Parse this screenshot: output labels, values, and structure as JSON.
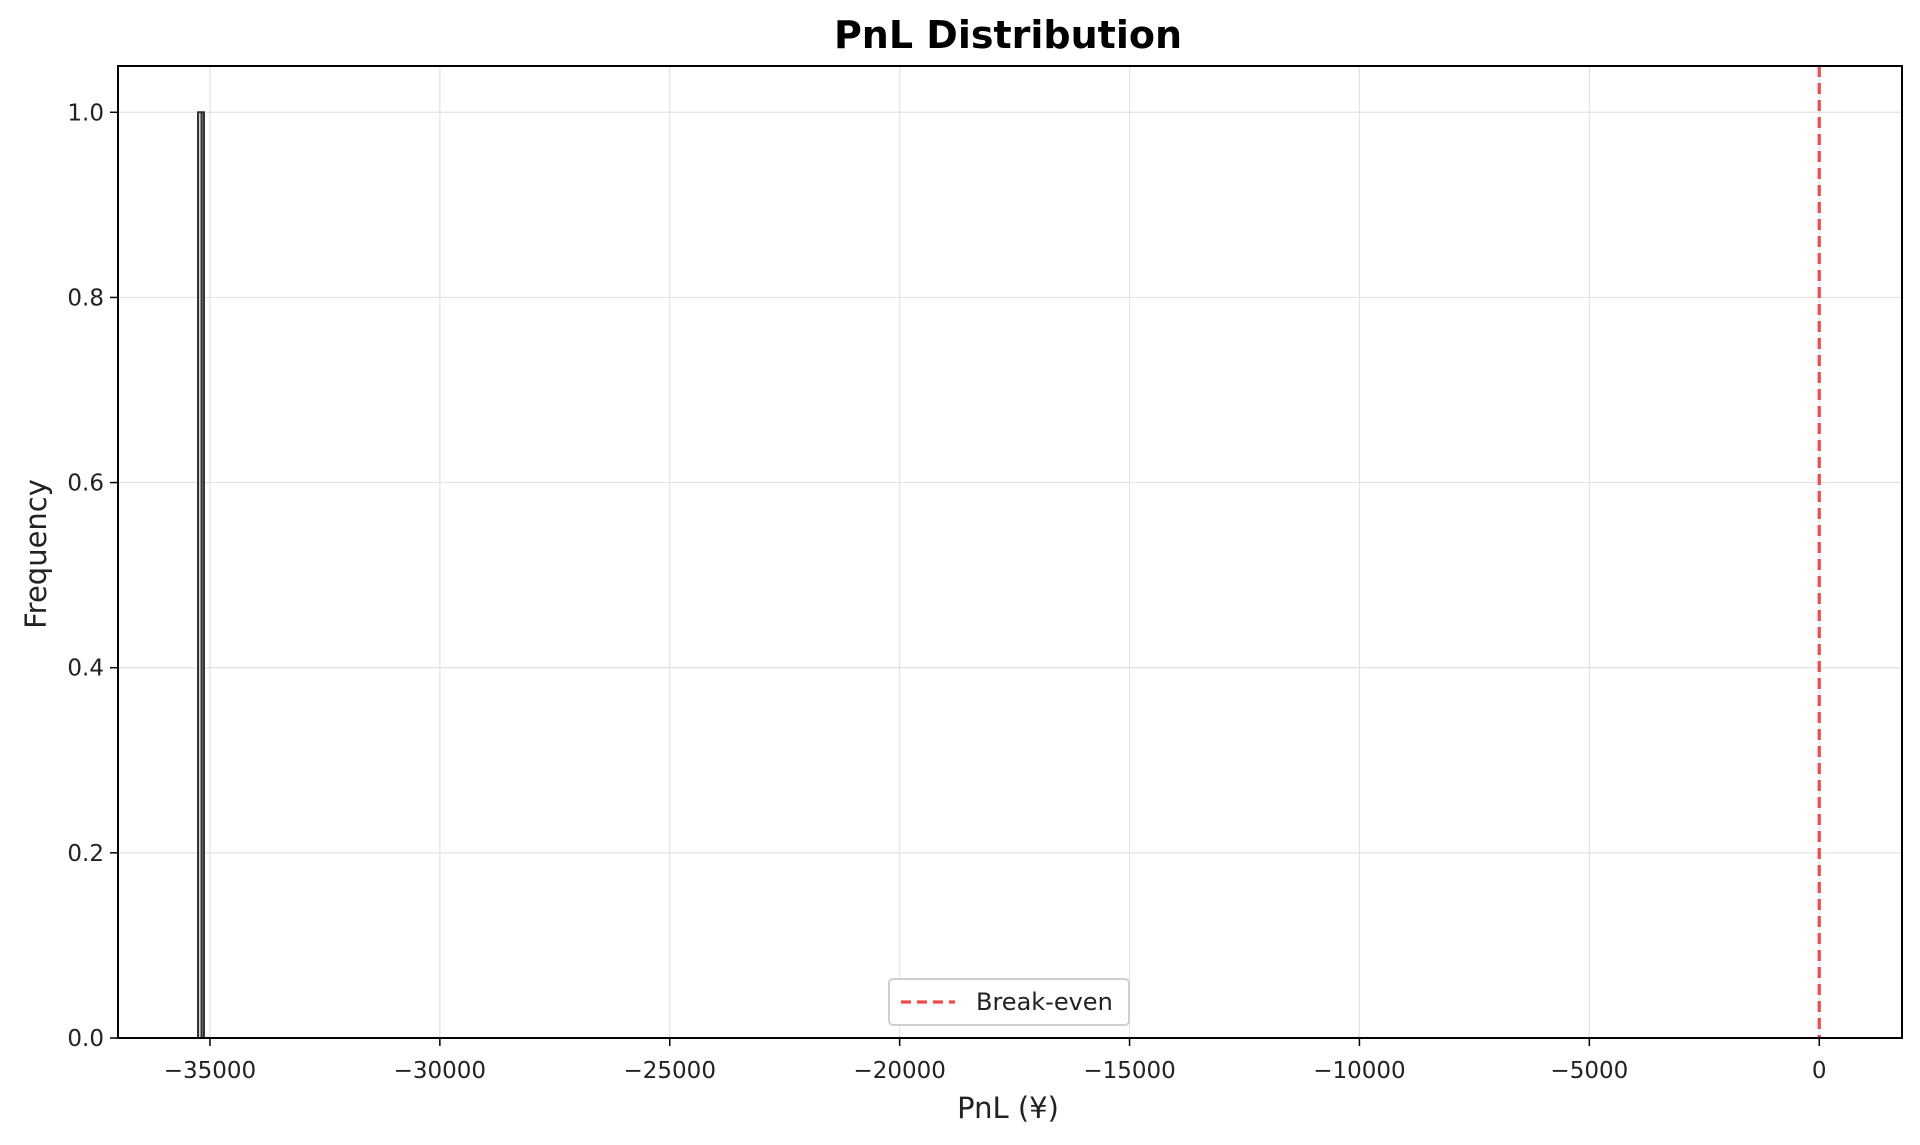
{
  "chart_data": {
    "type": "bar",
    "title": "PnL Distribution",
    "xlabel": "PnL (¥)",
    "ylabel": "Frequency",
    "xlim": [
      -37000,
      1800
    ],
    "ylim": [
      0,
      1.05
    ],
    "x_ticks": [
      -35000,
      -30000,
      -25000,
      -20000,
      -15000,
      -10000,
      -5000,
      0
    ],
    "x_tick_labels": [
      "−35000",
      "−30000",
      "−25000",
      "−20000",
      "−15000",
      "−10000",
      "−5000",
      "0"
    ],
    "y_ticks": [
      0.0,
      0.2,
      0.4,
      0.6,
      0.8,
      1.0
    ],
    "y_tick_labels": [
      "0.0",
      "0.2",
      "0.4",
      "0.6",
      "0.8",
      "1.0"
    ],
    "bins": [
      {
        "x0": -35260,
        "x1": -35180,
        "count": 1
      },
      {
        "x0": -35180,
        "x1": -35130,
        "count": 1
      }
    ],
    "reference_line": {
      "x": 0,
      "style": "dashed",
      "color": "#f04a4a",
      "label": "Break-even"
    },
    "grid": true,
    "legend_placement": "lower-center",
    "colors": {
      "bar_edge": "#333333",
      "bar_fill": "#d8d8d8",
      "grid": "#e3e3e3",
      "axis": "#000000"
    }
  }
}
